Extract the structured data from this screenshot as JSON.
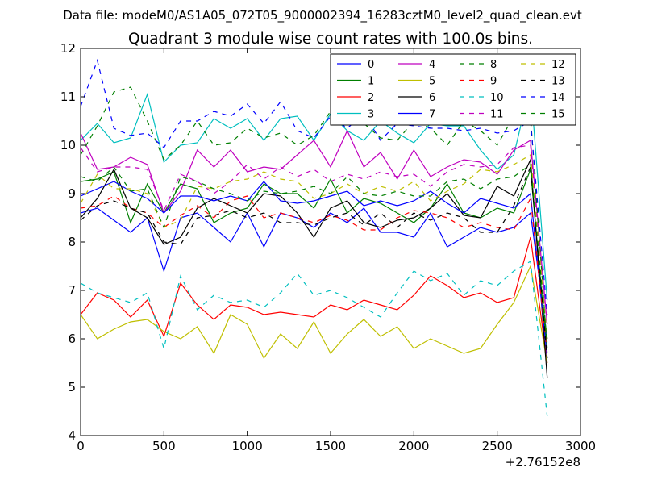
{
  "figure": {
    "suptitle": "Data file: modeM0/AS1A05_072T05_9000002394_16283cztM0_level2_quad_clean.evt",
    "offset_label": "+2.76152e8"
  },
  "chart_data": {
    "type": "line",
    "title": "Quadrant 3 module wise count rates with 100.0s bins.",
    "xlabel": "",
    "ylabel": "",
    "xlim": [
      0,
      3000
    ],
    "ylim": [
      4,
      12
    ],
    "x_offset": "+2.76152e8",
    "xticks": [
      "0",
      "500",
      "1000",
      "1500",
      "2000",
      "2500",
      "3000"
    ],
    "yticks": [
      "4",
      "5",
      "6",
      "7",
      "8",
      "9",
      "10",
      "11",
      "12"
    ],
    "x": [
      0,
      100,
      200,
      300,
      400,
      500,
      600,
      700,
      800,
      900,
      1000,
      1100,
      1200,
      1300,
      1400,
      1500,
      1600,
      1700,
      1800,
      1900,
      2000,
      2100,
      2200,
      2300,
      2400,
      2500,
      2600,
      2700,
      2800
    ],
    "legend_location": "upper right",
    "series": [
      {
        "name": "0",
        "color": "#0000ff",
        "dash": "solid",
        "values": [
          8.6,
          8.7,
          8.45,
          8.2,
          8.5,
          7.4,
          8.5,
          8.6,
          8.3,
          8.0,
          8.6,
          7.9,
          8.6,
          8.5,
          8.3,
          8.6,
          8.4,
          8.7,
          8.2,
          8.2,
          8.1,
          8.6,
          7.9,
          8.1,
          8.3,
          8.2,
          8.3,
          8.6,
          6.0
        ]
      },
      {
        "name": "1",
        "color": "#007f00",
        "dash": "solid",
        "values": [
          9.25,
          9.3,
          9.45,
          8.4,
          9.2,
          8.6,
          9.2,
          9.1,
          8.4,
          8.6,
          8.7,
          9.2,
          9.0,
          9.0,
          8.7,
          9.3,
          8.6,
          8.9,
          8.8,
          8.6,
          8.4,
          8.7,
          9.2,
          8.6,
          8.5,
          8.7,
          8.6,
          9.5,
          5.7
        ]
      },
      {
        "name": "2",
        "color": "#ff0000",
        "dash": "solid",
        "values": [
          6.5,
          6.95,
          6.8,
          6.45,
          6.8,
          6.05,
          7.15,
          6.7,
          6.4,
          6.7,
          6.65,
          6.5,
          6.55,
          6.5,
          6.45,
          6.7,
          6.6,
          6.8,
          6.7,
          6.6,
          6.9,
          7.3,
          7.1,
          6.85,
          6.95,
          6.75,
          6.85,
          8.1,
          5.5
        ]
      },
      {
        "name": "3",
        "color": "#00bfbf",
        "dash": "solid",
        "values": [
          10.1,
          10.45,
          10.05,
          10.15,
          11.05,
          9.65,
          10.0,
          10.05,
          10.55,
          10.35,
          10.55,
          10.1,
          10.55,
          10.6,
          10.1,
          10.65,
          10.3,
          10.1,
          10.5,
          10.25,
          10.05,
          10.45,
          10.4,
          10.4,
          9.9,
          9.5,
          9.8,
          11.25,
          6.8
        ]
      },
      {
        "name": "4",
        "color": "#bf00bf",
        "dash": "solid",
        "values": [
          10.25,
          9.5,
          9.55,
          9.75,
          9.6,
          8.6,
          9.05,
          9.9,
          9.55,
          9.9,
          9.45,
          9.55,
          9.5,
          9.8,
          10.1,
          9.55,
          10.3,
          9.55,
          9.85,
          9.3,
          9.9,
          9.35,
          9.55,
          9.7,
          9.65,
          9.4,
          9.9,
          10.1,
          6.3
        ]
      },
      {
        "name": "5",
        "color": "#bfbf00",
        "dash": "solid",
        "values": [
          6.5,
          6.0,
          6.2,
          6.35,
          6.4,
          6.15,
          6.0,
          6.25,
          5.7,
          6.5,
          6.3,
          5.6,
          6.1,
          5.8,
          6.35,
          5.7,
          6.1,
          6.4,
          6.05,
          6.25,
          5.8,
          6.0,
          5.85,
          5.7,
          5.8,
          6.3,
          6.75,
          7.5,
          5.5
        ]
      },
      {
        "name": "6",
        "color": "#000000",
        "dash": "solid",
        "values": [
          8.5,
          8.9,
          9.5,
          8.7,
          8.5,
          7.95,
          8.1,
          8.7,
          8.9,
          8.75,
          8.6,
          9.0,
          8.95,
          8.6,
          8.1,
          8.7,
          8.85,
          8.4,
          8.3,
          8.45,
          8.5,
          8.7,
          9.0,
          8.55,
          8.5,
          9.15,
          8.95,
          9.7,
          5.2
        ]
      },
      {
        "name": "7",
        "color": "#0000ff",
        "dash": "solid",
        "values": [
          8.95,
          9.1,
          9.25,
          9.05,
          8.9,
          8.6,
          8.95,
          8.95,
          8.85,
          8.95,
          8.85,
          9.25,
          8.85,
          8.8,
          8.85,
          8.95,
          9.05,
          8.75,
          8.85,
          8.75,
          8.85,
          9.05,
          8.8,
          8.6,
          8.9,
          8.8,
          8.7,
          9.0,
          5.6
        ]
      },
      {
        "name": "8",
        "color": "#007f00",
        "dash": "dashed",
        "values": [
          9.8,
          10.4,
          11.1,
          11.2,
          10.5,
          9.7,
          10.0,
          10.5,
          10.0,
          10.05,
          10.35,
          10.15,
          10.25,
          10.0,
          10.2,
          10.7,
          10.8,
          10.45,
          10.15,
          10.1,
          10.5,
          10.35,
          10.0,
          10.5,
          10.3,
          10.0,
          10.6,
          10.6,
          5.8
        ]
      },
      {
        "name": "9",
        "color": "#ff0000",
        "dash": "dashed",
        "values": [
          8.7,
          8.75,
          8.95,
          8.7,
          8.6,
          8.3,
          8.55,
          8.75,
          8.5,
          8.85,
          8.95,
          8.5,
          8.6,
          8.5,
          8.4,
          8.55,
          8.45,
          8.25,
          8.25,
          8.5,
          8.65,
          8.6,
          8.5,
          8.3,
          8.4,
          8.3,
          8.25,
          8.9,
          5.7
        ]
      },
      {
        "name": "10",
        "color": "#00bfbf",
        "dash": "dashed",
        "values": [
          7.15,
          6.95,
          6.85,
          6.75,
          6.95,
          5.8,
          7.3,
          6.6,
          6.9,
          6.75,
          6.8,
          6.65,
          6.95,
          7.35,
          6.9,
          7.0,
          6.85,
          6.65,
          6.45,
          6.95,
          7.4,
          7.2,
          7.35,
          6.9,
          7.2,
          7.1,
          7.4,
          7.6,
          4.4
        ]
      },
      {
        "name": "11",
        "color": "#bf00bf",
        "dash": "dashed",
        "values": [
          9.95,
          9.45,
          9.55,
          9.55,
          9.5,
          8.65,
          9.4,
          9.25,
          9.0,
          9.25,
          9.6,
          9.3,
          9.55,
          9.35,
          9.5,
          9.25,
          9.4,
          9.3,
          9.45,
          9.35,
          9.4,
          9.15,
          9.45,
          9.6,
          9.55,
          9.6,
          9.95,
          10.0,
          6.0
        ]
      },
      {
        "name": "12",
        "color": "#bfbf00",
        "dash": "dashed",
        "values": [
          8.8,
          9.4,
          9.1,
          9.1,
          9.0,
          8.3,
          8.45,
          9.15,
          9.1,
          9.25,
          9.3,
          9.45,
          9.3,
          9.25,
          8.9,
          9.0,
          9.2,
          9.0,
          9.15,
          9.05,
          9.25,
          8.85,
          9.05,
          9.2,
          9.5,
          9.45,
          9.6,
          9.8,
          6.0
        ]
      },
      {
        "name": "13",
        "color": "#000000",
        "dash": "dashed",
        "values": [
          8.45,
          8.75,
          8.85,
          8.7,
          8.6,
          8.0,
          7.95,
          8.5,
          8.55,
          8.65,
          8.5,
          8.6,
          8.4,
          8.4,
          8.35,
          8.5,
          8.6,
          8.35,
          8.6,
          8.3,
          8.6,
          8.45,
          8.6,
          8.5,
          8.2,
          8.2,
          8.75,
          9.55,
          5.6
        ]
      },
      {
        "name": "14",
        "color": "#0000ff",
        "dash": "dashed",
        "values": [
          10.8,
          11.75,
          10.35,
          10.2,
          10.25,
          9.95,
          10.5,
          10.5,
          10.7,
          10.6,
          10.85,
          10.45,
          10.9,
          10.3,
          10.15,
          10.6,
          10.35,
          10.65,
          10.1,
          10.45,
          10.4,
          10.35,
          10.35,
          10.3,
          10.35,
          10.25,
          10.3,
          10.5,
          6.5
        ]
      },
      {
        "name": "15",
        "color": "#007f00",
        "dash": "dashed",
        "values": [
          9.35,
          9.25,
          9.55,
          9.05,
          9.1,
          8.3,
          9.35,
          9.25,
          9.1,
          9.0,
          8.85,
          9.05,
          9.0,
          9.05,
          9.15,
          9.0,
          9.35,
          9.0,
          8.95,
          9.05,
          8.95,
          8.95,
          9.25,
          9.3,
          9.1,
          9.3,
          9.35,
          9.6,
          5.9
        ]
      }
    ]
  }
}
